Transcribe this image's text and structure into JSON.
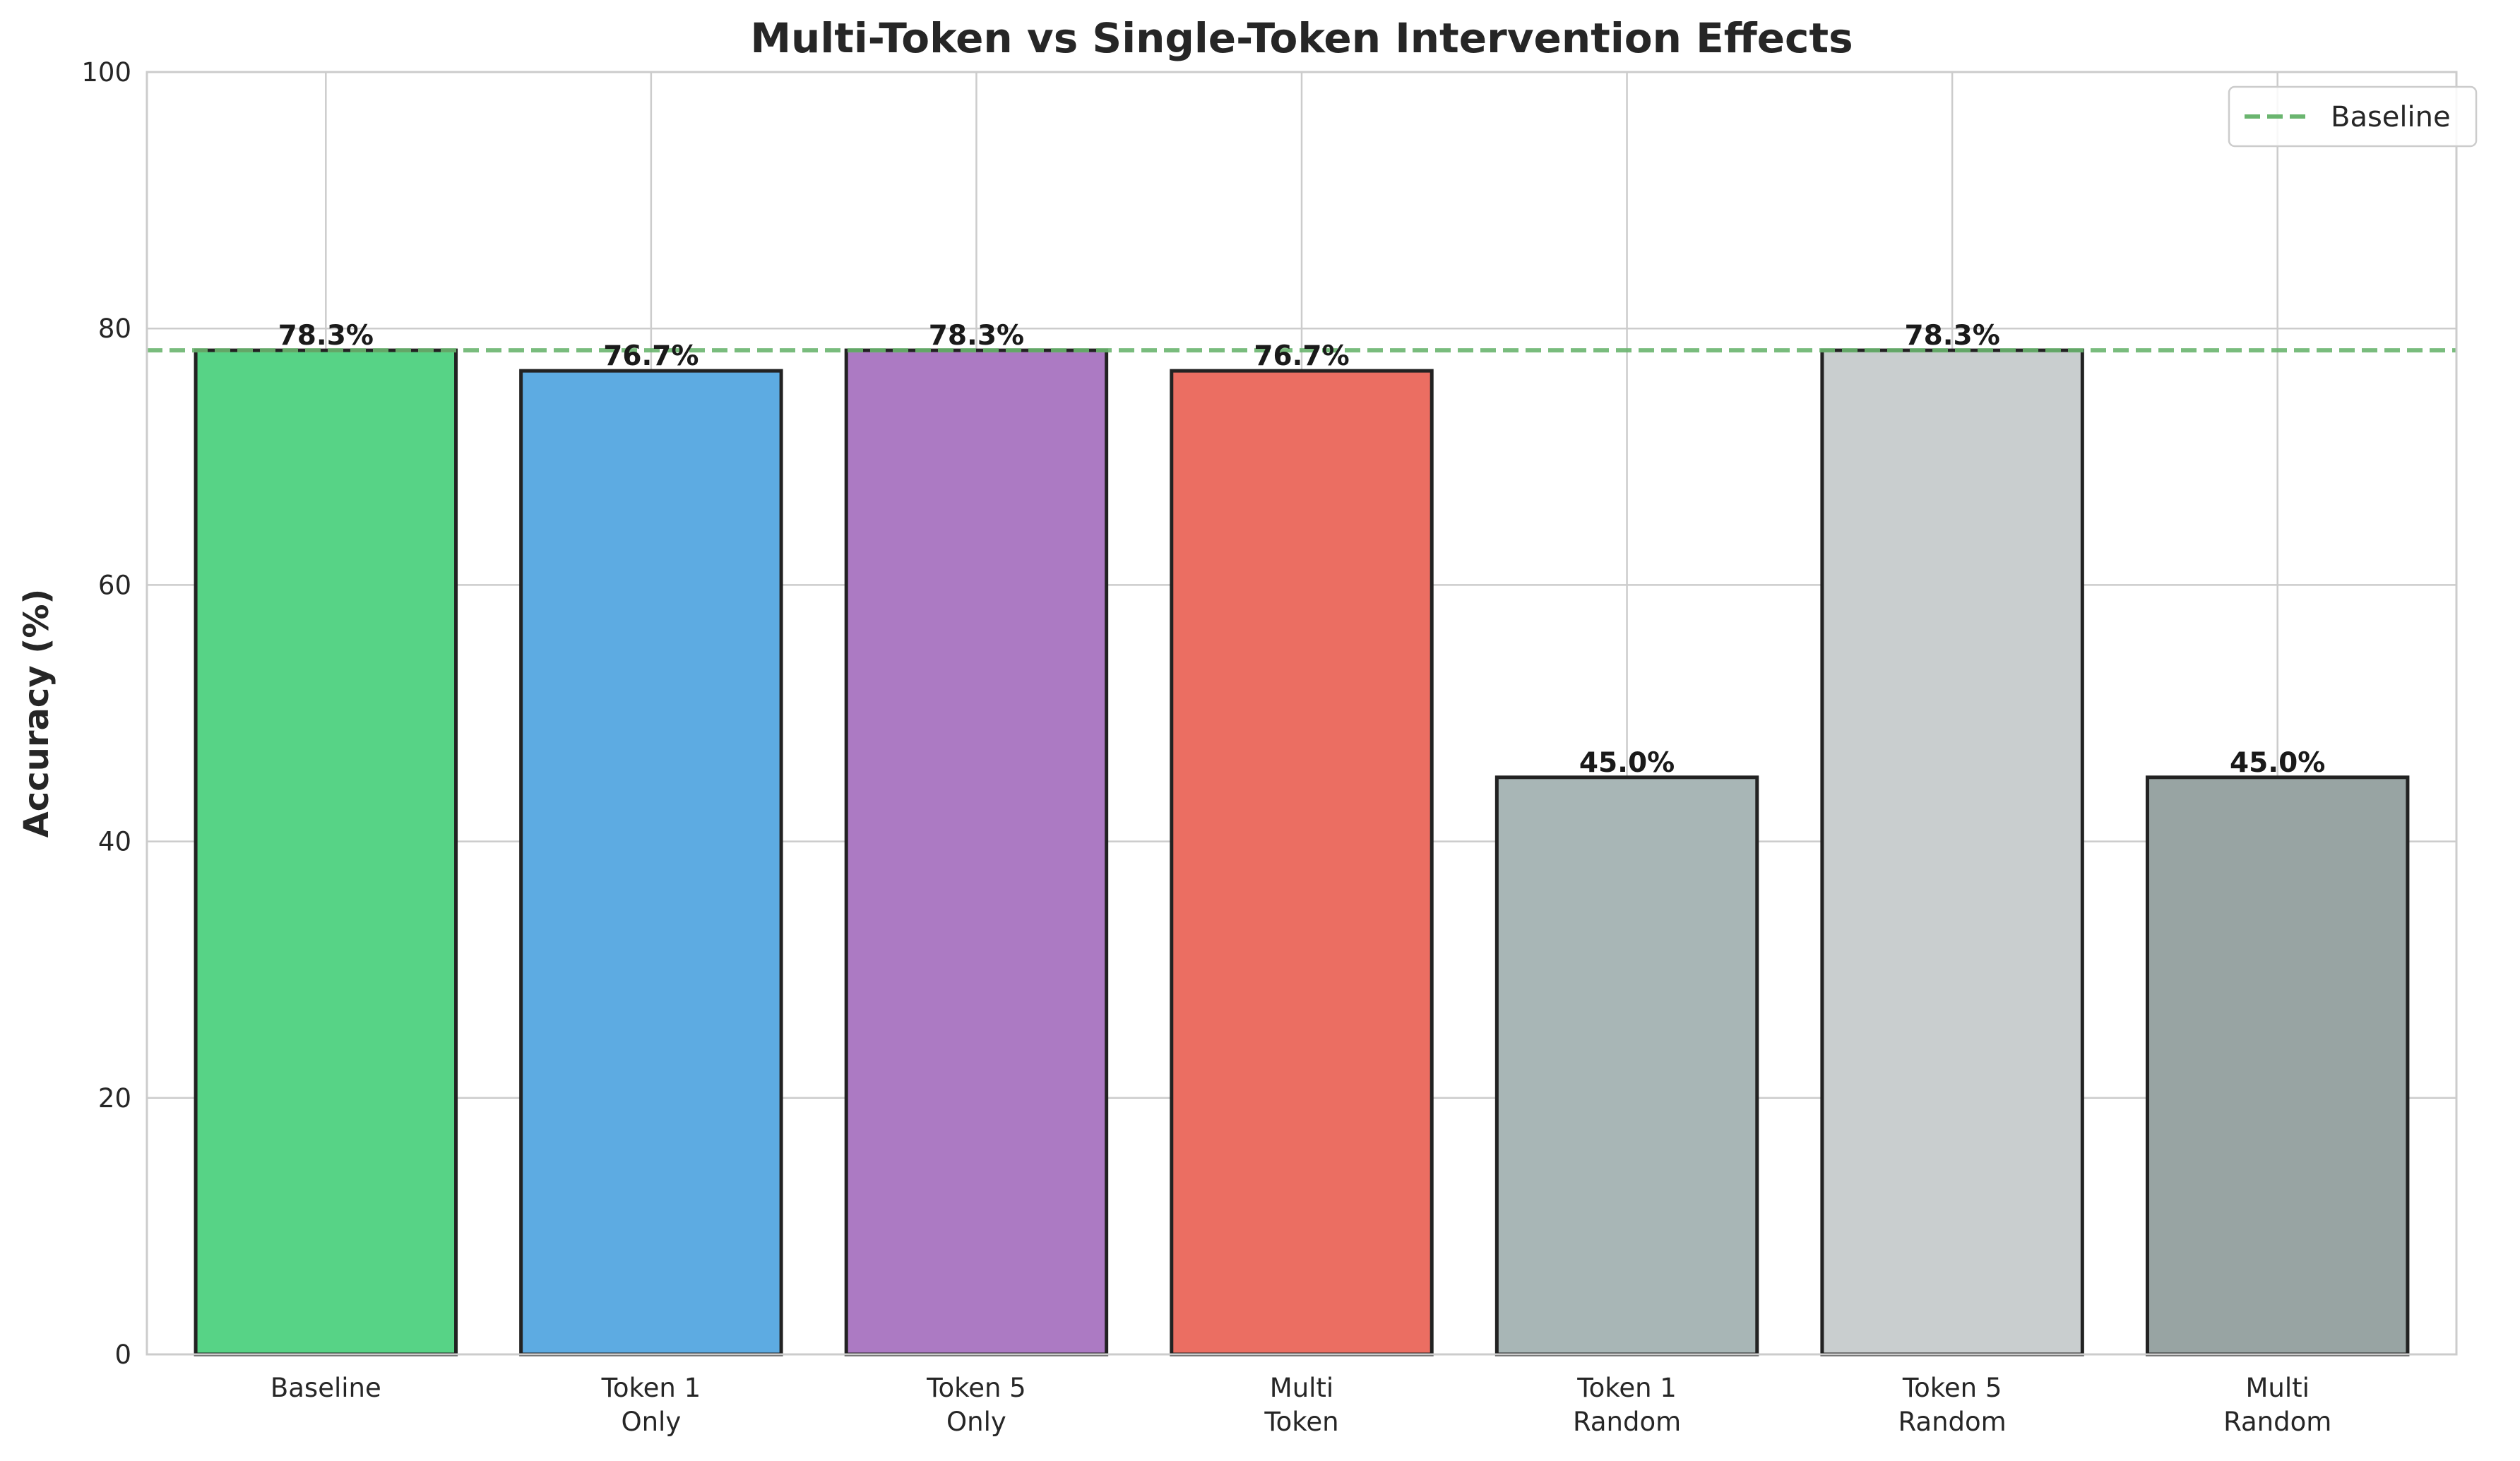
{
  "chart_data": {
    "type": "bar",
    "title": "Multi-Token vs Single-Token Intervention Effects",
    "xlabel": "",
    "ylabel": "Accuracy (%)",
    "ylim": [
      0,
      100
    ],
    "yticks": [
      0,
      20,
      40,
      60,
      80,
      100
    ],
    "grid": true,
    "legend": {
      "position": "top-right",
      "entries": [
        {
          "label": "Baseline",
          "style": "dashed",
          "color": "#6ab56f"
        }
      ]
    },
    "baseline": {
      "name": "Baseline",
      "value": 78.3,
      "color": "#6ab56f"
    },
    "categories": [
      [
        "Baseline"
      ],
      [
        "Token 1",
        "Only"
      ],
      [
        "Token 5",
        "Only"
      ],
      [
        "Multi",
        "Token"
      ],
      [
        "Token 1",
        "Random"
      ],
      [
        "Token 5",
        "Random"
      ],
      [
        "Multi",
        "Random"
      ]
    ],
    "values": [
      78.3,
      76.7,
      78.3,
      76.7,
      45.0,
      78.3,
      45.0
    ],
    "value_labels": [
      "78.3%",
      "76.7%",
      "78.3%",
      "76.7%",
      "45.0%",
      "78.3%",
      "45.0%"
    ],
    "colors": [
      "#57d386",
      "#5dabe2",
      "#ac7ac3",
      "#eb6e62",
      "#a8b6b6",
      "#c9cecf",
      "#98a4a3"
    ]
  }
}
